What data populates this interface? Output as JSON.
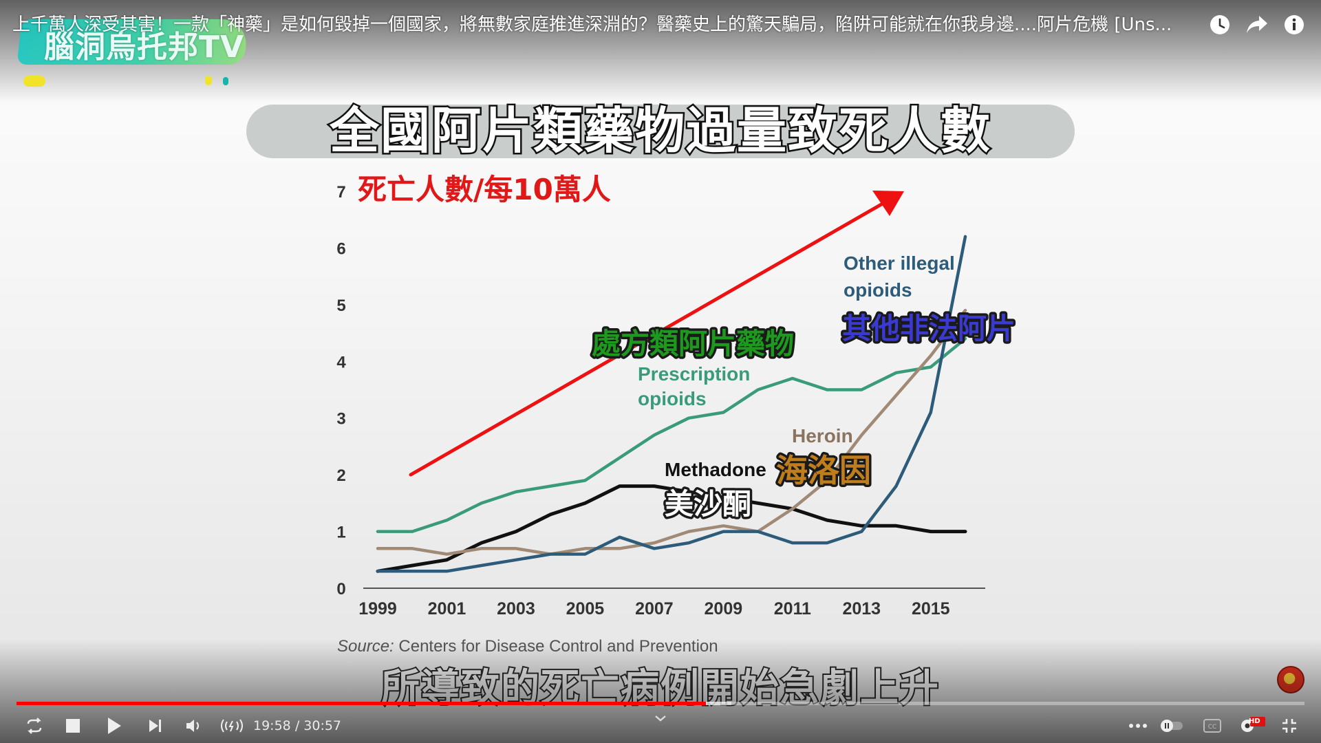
{
  "video": {
    "title": "上千萬人深受其害！一款「神藥」是如何毀掉一個國家，將無數家庭推進深淵的？醫藥史上的驚天騙局，陷阱可能就在你我身邊....阿片危機 [Uns...",
    "channel_logo_text": "腦洞烏托邦TV",
    "subtitle": "所導致的死亡病例開始急劇上升"
  },
  "top_icons": {
    "watch_later": "clock-icon",
    "share": "share-arrow-icon",
    "info": "info-icon"
  },
  "chart_data": {
    "type": "line",
    "title": "全國阿片類藥物過量致死人數",
    "ylabel": "死亡人數/每10萬人",
    "ylim": [
      0,
      7
    ],
    "yticks": [
      "0",
      "1",
      "2",
      "3",
      "4",
      "5",
      "6",
      "7"
    ],
    "xlim": [
      1999,
      2016
    ],
    "xticks": [
      "1999",
      "2001",
      "2003",
      "2005",
      "2007",
      "2009",
      "2011",
      "2013",
      "2015"
    ],
    "x": [
      1999,
      2000,
      2001,
      2002,
      2003,
      2004,
      2005,
      2006,
      2007,
      2008,
      2009,
      2010,
      2011,
      2012,
      2013,
      2014,
      2015,
      2016
    ],
    "source_label": "Source:",
    "source_text": "Centers for Disease Control and Prevention",
    "series": [
      {
        "name": "Prescription opioids",
        "name_lines": [
          "Prescription",
          "opioids"
        ],
        "label_zh": "處方類阿片藥物",
        "color": "#3a9b7c",
        "values": [
          1.0,
          1.0,
          1.2,
          1.5,
          1.7,
          1.8,
          1.9,
          2.3,
          2.7,
          3.0,
          3.1,
          3.5,
          3.7,
          3.5,
          3.5,
          3.8,
          3.9,
          4.4
        ]
      },
      {
        "name": "Methadone",
        "name_lines": [
          "Methadone"
        ],
        "label_zh": "美沙酮",
        "color": "#111111",
        "values": [
          0.3,
          0.4,
          0.5,
          0.8,
          1.0,
          1.3,
          1.5,
          1.8,
          1.8,
          1.7,
          1.6,
          1.5,
          1.4,
          1.2,
          1.1,
          1.1,
          1.0,
          1.0
        ]
      },
      {
        "name": "Heroin",
        "name_lines": [
          "Heroin"
        ],
        "label_zh": "海洛因",
        "color": "#a08a75",
        "values": [
          0.7,
          0.7,
          0.6,
          0.7,
          0.7,
          0.6,
          0.7,
          0.7,
          0.8,
          1.0,
          1.1,
          1.0,
          1.4,
          1.9,
          2.7,
          3.4,
          4.1,
          4.9
        ]
      },
      {
        "name": "Other illegal opioids",
        "name_lines": [
          "Other illegal",
          "opioids"
        ],
        "label_zh": "其他非法阿片",
        "color": "#2d5b7a",
        "values": [
          0.3,
          0.3,
          0.3,
          0.4,
          0.5,
          0.6,
          0.6,
          0.9,
          0.7,
          0.8,
          1.0,
          1.0,
          0.8,
          0.8,
          1.0,
          1.8,
          3.1,
          6.2
        ]
      }
    ],
    "trend_arrow_color": "#ee1111"
  },
  "player": {
    "progress_played_fraction": 0.535,
    "progress_buffered_fraction": 0.555,
    "time_current": "19:58",
    "time_separator": "/",
    "time_total": "30:57",
    "hd_badge": "HD",
    "icons": [
      "loop-icon",
      "stop-icon",
      "play-icon",
      "next-icon",
      "volume-icon",
      "live-icon",
      "chevron-up-icon",
      "more-icon",
      "autoplay-toggle-icon",
      "captions-icon",
      "settings-icon",
      "exit-fullscreen-icon"
    ]
  },
  "colors": {
    "progress_red": "#ff0000",
    "zh_green": "#1a8c1a",
    "zh_blue": "#3b3bbf",
    "zh_gold": "#b07a1a",
    "zh_white": "#ffffff"
  }
}
